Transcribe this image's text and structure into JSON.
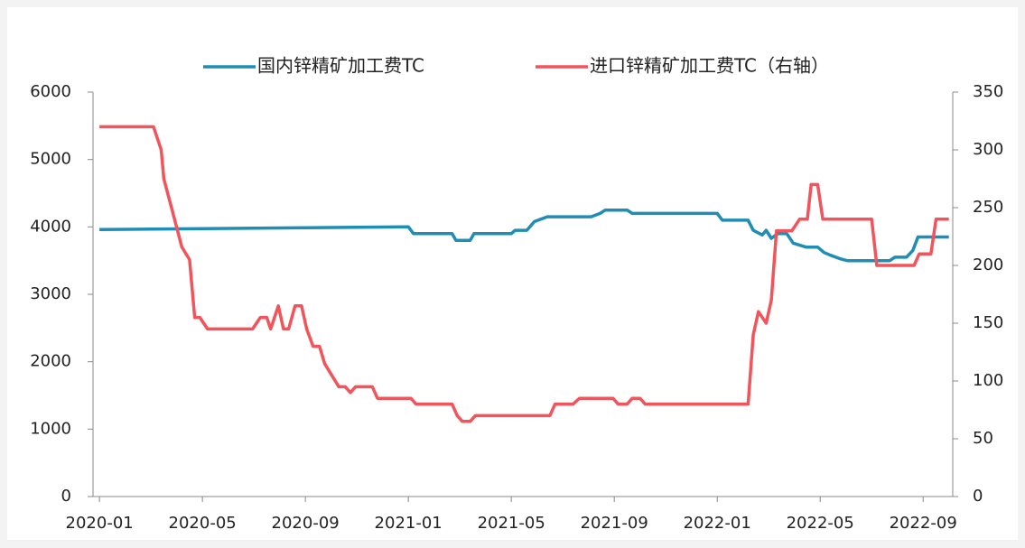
{
  "chart_data": {
    "type": "line",
    "legend": "top",
    "series": [
      {
        "name": "国内锌精矿加工费TC",
        "color": "#1f8db4",
        "axis": "y",
        "x": [
          0,
          12,
          12.2,
          13.7,
          13.85,
          14.4,
          14.55,
          16,
          16.15,
          16.6,
          16.9,
          17.4,
          19.1,
          19.45,
          19.65,
          20.5,
          20.7,
          24,
          24.2,
          25.2,
          25.4,
          25.75,
          25.9,
          26.1,
          26.35,
          26.7,
          26.95,
          27.45,
          27.9,
          28.15,
          28.4,
          28.75,
          29.05,
          30.7,
          30.9,
          31.35,
          31.6,
          31.8,
          33
        ],
        "values": [
          3960,
          4000,
          3900,
          3900,
          3800,
          3800,
          3900,
          3900,
          3950,
          3950,
          4080,
          4150,
          4150,
          4200,
          4250,
          4250,
          4200,
          4200,
          4100,
          4100,
          3950,
          3880,
          3950,
          3830,
          3900,
          3900,
          3760,
          3700,
          3700,
          3620,
          3580,
          3530,
          3500,
          3500,
          3550,
          3550,
          3650,
          3850,
          3850
        ]
      },
      {
        "name": "进口锌精矿加工费TC（右轴）",
        "color": "#f2545b",
        "axis": "y2",
        "x": [
          0,
          2.1,
          2.4,
          2.5,
          2.8,
          3.2,
          3.5,
          3.7,
          3.9,
          4.2,
          5.95,
          6.25,
          6.5,
          6.65,
          6.95,
          7.15,
          7.35,
          7.6,
          7.85,
          8.05,
          8.3,
          8.55,
          8.75,
          9.3,
          9.55,
          9.75,
          9.95,
          10.6,
          10.8,
          12.1,
          12.3,
          13.7,
          13.9,
          14.1,
          14.4,
          14.6,
          17.5,
          17.7,
          18.4,
          18.65,
          19.95,
          20.15,
          20.5,
          20.7,
          21,
          21.2,
          25.2,
          25.4,
          25.6,
          25.9,
          26.1,
          26.3,
          26.9,
          27.2,
          27.5,
          27.65,
          27.9,
          28.1,
          30,
          30.2,
          31.65,
          31.85,
          32.3,
          32.5,
          33
        ],
        "values": [
          320,
          320,
          300,
          275,
          250,
          216,
          205,
          155,
          155,
          145,
          145,
          155,
          155,
          145,
          165,
          145,
          145,
          165,
          165,
          145,
          130,
          130,
          115,
          95,
          95,
          90,
          95,
          95,
          85,
          85,
          80,
          80,
          70,
          65,
          65,
          70,
          70,
          80,
          80,
          85,
          85,
          80,
          80,
          85,
          85,
          80,
          80,
          140,
          160,
          150,
          170,
          230,
          230,
          240,
          240,
          270,
          270,
          240,
          240,
          200,
          200,
          210,
          210,
          240,
          240
        ]
      }
    ],
    "xlim": [
      -0.25,
      33.15
    ],
    "xticks": [
      {
        "value": 0,
        "label": "2020-01"
      },
      {
        "value": 4,
        "label": "2020-05"
      },
      {
        "value": 8,
        "label": "2020-09"
      },
      {
        "value": 12,
        "label": "2021-01"
      },
      {
        "value": 16,
        "label": "2021-05"
      },
      {
        "value": 20,
        "label": "2021-09"
      },
      {
        "value": 24,
        "label": "2022-01"
      },
      {
        "value": 28,
        "label": "2022-05"
      },
      {
        "value": 32,
        "label": "2022-09"
      }
    ],
    "ylim": [
      0,
      6000
    ],
    "yticks": [
      0,
      1000,
      2000,
      3000,
      4000,
      5000,
      6000
    ],
    "y2lim": [
      0,
      350
    ],
    "y2ticks": [
      0,
      50,
      100,
      150,
      200,
      250,
      300,
      350
    ]
  }
}
